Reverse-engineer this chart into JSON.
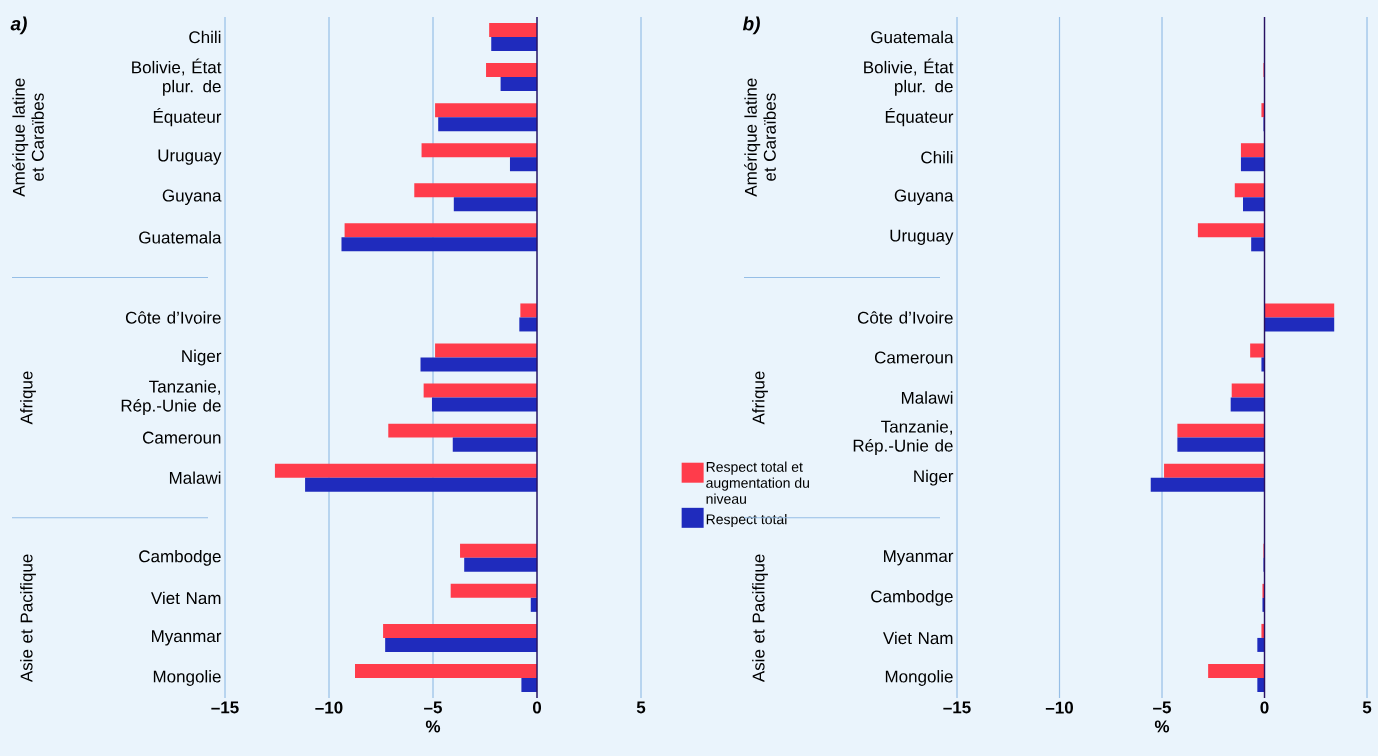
{
  "chart_data": [
    {
      "type": "bar",
      "orientation": "horizontal",
      "title": "a)",
      "xlabel": "%",
      "categories": [
        "Chili",
        "Bolivie, État plur. de",
        "Équateur",
        "Uruguay",
        "Guyana",
        "Guatemala",
        null,
        "Côte d’Ivoire",
        "Niger",
        "Tanzanie, Rép.-Unie de",
        "Cameroun",
        "Malawi",
        null,
        "Cambodge",
        "Viet Nam",
        "Myanmar",
        "Mongolie"
      ],
      "series": [
        {
          "name": "Respect total et augmentation du niveau",
          "color": "#ff3c4b",
          "values": [
            -2.3,
            -2.45,
            -4.9,
            -5.55,
            -5.9,
            -9.25,
            null,
            -0.8,
            -4.9,
            -5.45,
            -7.15,
            -12.6,
            null,
            -3.7,
            -4.15,
            -7.4,
            -8.75
          ]
        },
        {
          "name": "Respect total",
          "color": "#1f2bbd",
          "values": [
            -2.2,
            -1.75,
            -4.75,
            -1.3,
            -4.0,
            -9.4,
            null,
            -0.85,
            -5.6,
            -5.05,
            -4.05,
            -11.15,
            null,
            -3.5,
            -0.3,
            -7.3,
            -0.75
          ]
        }
      ],
      "xlim": [
        -15,
        5
      ],
      "xticks": [
        {
          "value": -15,
          "label": "–15"
        },
        {
          "value": -10,
          "label": "–10"
        },
        {
          "value": -5,
          "label": "–5"
        },
        0,
        5
      ],
      "grid": "x",
      "legend": "right",
      "annotations": [
        "Amérique latine et Caraïbes",
        "Afrique",
        "Asie et Pacifique"
      ]
    },
    {
      "type": "bar",
      "orientation": "horizontal",
      "title": "b)",
      "xlabel": "%",
      "categories": [
        "Guatemala",
        "Bolivie, État plur. de",
        "Équateur",
        "Chili",
        "Guyana",
        "Uruguay",
        null,
        "Côte d’Ivoire",
        "Cameroun",
        "Malawi",
        "Tanzanie, Rép.-Unie de",
        "Niger",
        null,
        "Myanmar",
        "Cambodge",
        "Viet Nam",
        "Mongolie"
      ],
      "series": [
        {
          "color": "#ff3c4b",
          "values": [
            0,
            -0.05,
            -0.15,
            -1.15,
            -1.45,
            -3.25,
            null,
            3.4,
            -0.7,
            -1.6,
            -4.25,
            -4.9,
            null,
            -0.05,
            -0.1,
            -0.15,
            -2.75
          ]
        },
        {
          "color": "#1f2bbd",
          "values": [
            0,
            0,
            -0.05,
            -1.15,
            -1.05,
            -0.65,
            null,
            3.4,
            -0.15,
            -1.65,
            -4.25,
            -5.55,
            null,
            -0.05,
            -0.1,
            -0.35,
            -0.35
          ]
        }
      ],
      "xlim": [
        -15,
        5
      ],
      "xticks": [
        {
          "value": -15,
          "label": "–15"
        },
        {
          "value": -10,
          "label": "–10"
        },
        {
          "value": -5,
          "label": "–5"
        },
        0,
        5
      ],
      "grid": "x",
      "annotations": [
        "Amérique latine et Caraïbes",
        "Afrique",
        "Asie et Pacifique"
      ]
    }
  ]
}
